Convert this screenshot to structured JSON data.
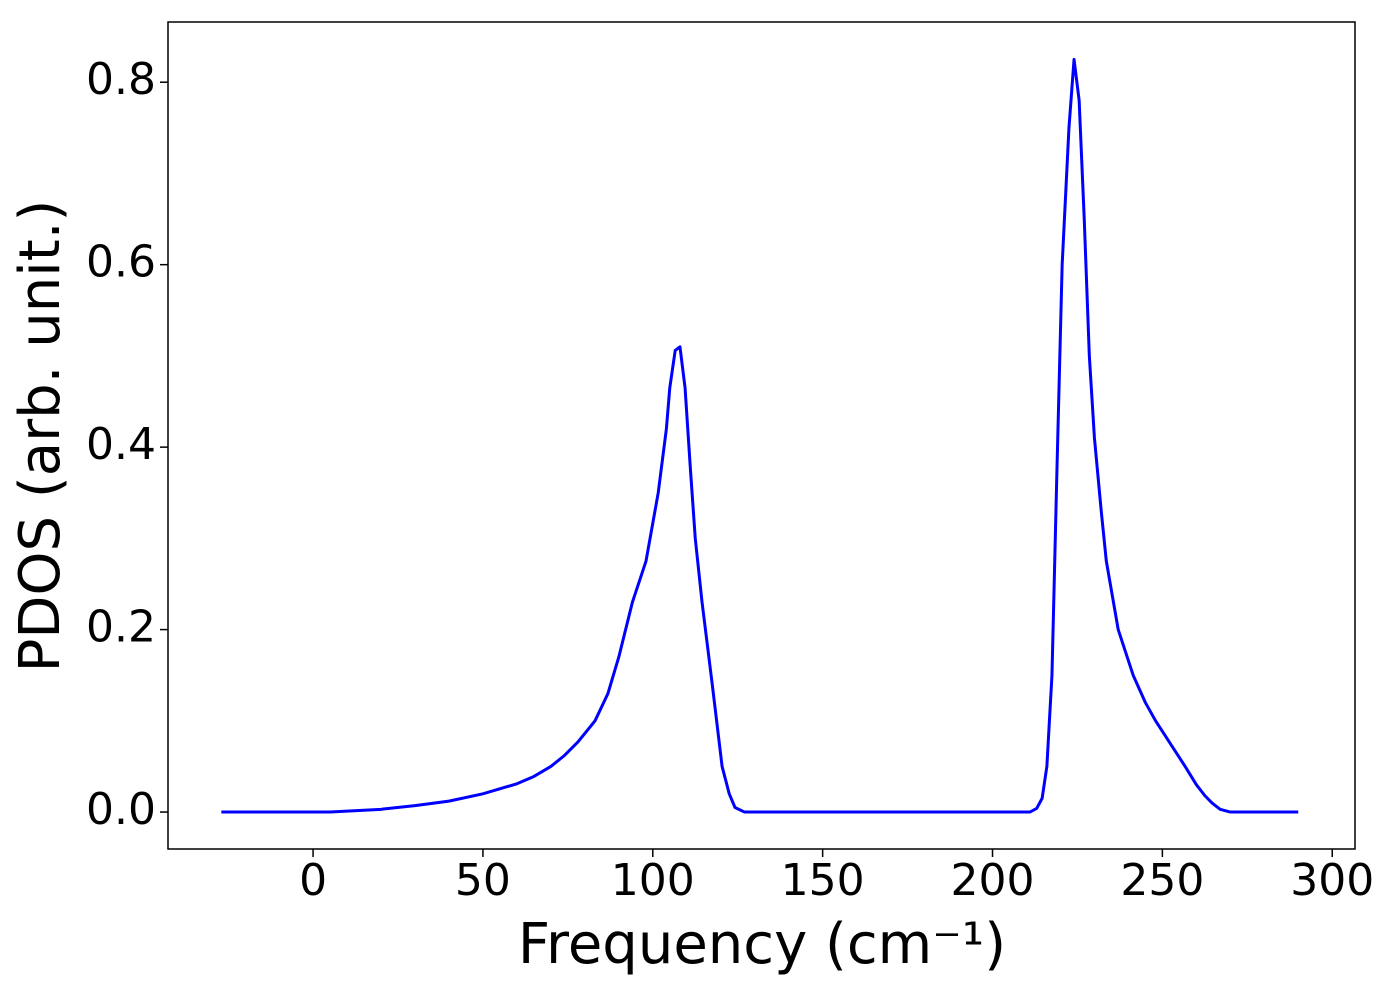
{
  "chart_data": {
    "type": "line",
    "xlabel": "Frequency (cm⁻¹)",
    "ylabel": "PDOS (arb. unit.)",
    "x": [
      -27,
      -10,
      0,
      5,
      10,
      20,
      30,
      40,
      50,
      60,
      65,
      70,
      74,
      78,
      83,
      86.8,
      90,
      94,
      98,
      101.6,
      104,
      105,
      106.6,
      108,
      109.5,
      111,
      112.5,
      114.5,
      117.5,
      120.4,
      122.5,
      124.2,
      127,
      150,
      200,
      211,
      213,
      214.6,
      216,
      217.5,
      219,
      220.5,
      222.5,
      224,
      225.5,
      227,
      228.5,
      230,
      232,
      233.5,
      237,
      241.4,
      245,
      248,
      252,
      256.7,
      260,
      262.5,
      264.6,
      267,
      270,
      290
    ],
    "series": [
      {
        "name": "PDOS",
        "color": "#0000ff",
        "values": [
          0,
          0,
          0,
          0,
          0.001,
          0.003,
          0.007,
          0.012,
          0.02,
          0.031,
          0.039,
          0.05,
          0.062,
          0.077,
          0.1,
          0.13,
          0.17,
          0.23,
          0.275,
          0.35,
          0.42,
          0.465,
          0.506,
          0.51,
          0.465,
          0.38,
          0.3,
          0.23,
          0.14,
          0.05,
          0.02,
          0.005,
          0,
          0,
          0,
          0,
          0.004,
          0.015,
          0.05,
          0.15,
          0.38,
          0.6,
          0.75,
          0.825,
          0.78,
          0.65,
          0.5,
          0.41,
          0.33,
          0.275,
          0.2,
          0.15,
          0.12,
          0.1,
          0.077,
          0.05,
          0.03,
          0.018,
          0.01,
          0.003,
          0,
          0
        ]
      }
    ],
    "xlim": [
      -42.7,
      306.7
    ],
    "ylim": [
      -0.0405,
      0.866
    ],
    "xticks": [
      0,
      50,
      100,
      150,
      200,
      250,
      300
    ],
    "yticks": [
      {
        "value": 0,
        "label": "0.0"
      },
      0.2,
      0.4,
      0.6,
      0.8
    ]
  }
}
